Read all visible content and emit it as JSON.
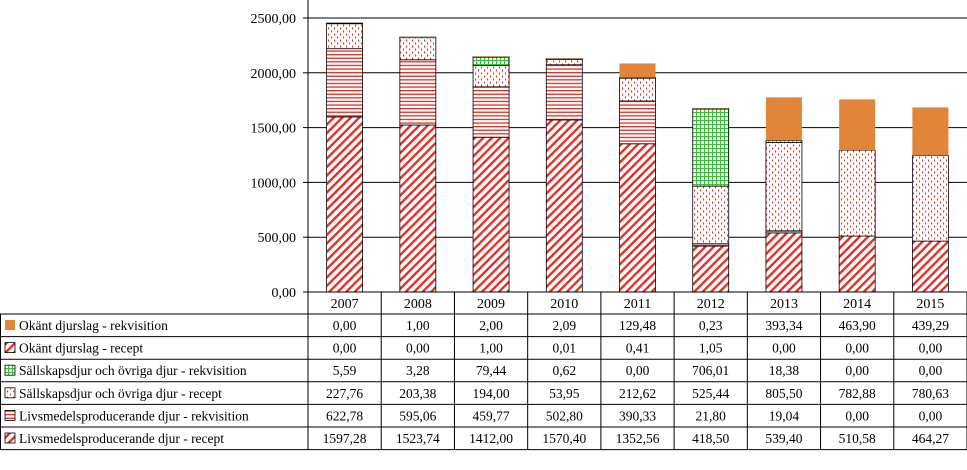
{
  "chart_data": {
    "type": "bar",
    "stacked": true,
    "title": "",
    "xlabel": "",
    "ylabel": "",
    "ylim": [
      0,
      2500
    ],
    "yticks": [
      "0,00",
      "500,00",
      "1000,00",
      "1500,00",
      "2000,00",
      "2500,00"
    ],
    "ytick_values": [
      0,
      500,
      1000,
      1500,
      2000,
      2500
    ],
    "categories": [
      "2007",
      "2008",
      "2009",
      "2010",
      "2011",
      "2012",
      "2013",
      "2014",
      "2015"
    ],
    "legend_position": "data-table-left",
    "grid": "horizontal",
    "series": [
      {
        "name": "Livsmedelsproducerande djur - recept",
        "color": "#e0302a",
        "pattern": "diagonal",
        "values": [
          1597.28,
          1523.74,
          1412.0,
          1570.4,
          1352.56,
          418.5,
          539.4,
          510.58,
          464.27
        ],
        "labels": [
          "1597,28",
          "1523,74",
          "1412,00",
          "1570,40",
          "1352,56",
          "418,50",
          "539,40",
          "510,58",
          "464,27"
        ]
      },
      {
        "name": "Livsmedelsproducerande djur - rekvisition",
        "color": "#e0302a",
        "pattern": "horizontal",
        "values": [
          622.78,
          595.06,
          459.77,
          502.8,
          390.33,
          21.8,
          19.04,
          0.0,
          0.0
        ],
        "labels": [
          "622,78",
          "595,06",
          "459,77",
          "502,80",
          "390,33",
          "21,80",
          "19,04",
          "0,00",
          "0,00"
        ]
      },
      {
        "name": "Sällskapsdjur och övriga djur - recept",
        "color": "#e0302a",
        "pattern": "dots",
        "values": [
          227.76,
          203.38,
          194.0,
          53.95,
          212.62,
          525.44,
          805.5,
          782.88,
          780.63
        ],
        "labels": [
          "227,76",
          "203,38",
          "194,00",
          "53,95",
          "212,62",
          "525,44",
          "805,50",
          "782,88",
          "780,63"
        ]
      },
      {
        "name": "Sällskapsdjur och övriga djur - rekvisition",
        "color": "#3fbf3f",
        "pattern": "grid",
        "values": [
          5.59,
          3.28,
          79.44,
          0.62,
          0.0,
          706.01,
          18.38,
          0.0,
          0.0
        ],
        "labels": [
          "5,59",
          "3,28",
          "79,44",
          "0,62",
          "0,00",
          "706,01",
          "18,38",
          "0,00",
          "0,00"
        ]
      },
      {
        "name": "Okänt djurslag - recept",
        "color": "#e0302a",
        "pattern": "diagonal",
        "values": [
          0.0,
          0.0,
          1.0,
          0.01,
          0.41,
          1.05,
          0.0,
          0.0,
          0.0
        ],
        "labels": [
          "0,00",
          "0,00",
          "1,00",
          "0,01",
          "0,41",
          "1,05",
          "0,00",
          "0,00",
          "0,00"
        ]
      },
      {
        "name": "Okänt djurslag - rekvisition",
        "color": "#e0853a",
        "pattern": "solid",
        "values": [
          0.0,
          1.0,
          2.0,
          2.09,
          129.48,
          0.23,
          393.34,
          463.9,
          439.29
        ],
        "labels": [
          "0,00",
          "1,00",
          "2,00",
          "2,09",
          "129,48",
          "0,23",
          "393,34",
          "463,90",
          "439,29"
        ]
      }
    ],
    "table_row_order": [
      5,
      4,
      3,
      2,
      1,
      0
    ]
  }
}
